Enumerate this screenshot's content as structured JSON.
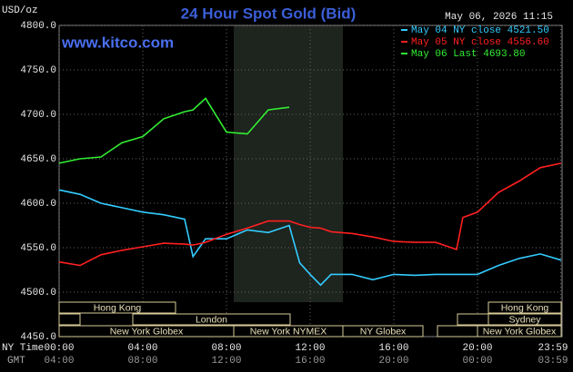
{
  "chart_data": {
    "type": "line",
    "title": "24 Hour Spot Gold (Bid)",
    "y_label": "USD/oz",
    "timestamp": "May 06, 2026 11:15",
    "watermark": "www.kitco.com",
    "x_row_label": "NY Time",
    "x2_row_label": "GMT",
    "x": [
      0,
      1,
      2,
      3,
      4,
      5,
      6,
      6.4,
      7,
      8,
      9,
      10,
      11,
      11.5,
      12,
      12.5,
      13,
      14,
      15,
      16,
      17,
      18,
      19,
      19.3,
      20,
      21,
      22,
      23,
      24
    ],
    "series": [
      {
        "name": "May 04 NY close 4521.50",
        "color": "#33ccff",
        "values": [
          4615,
          4610,
          4600,
          4595,
          4590,
          4587,
          4582,
          4540,
          4560,
          4560,
          4570,
          4567,
          4575,
          4533,
          4520,
          4508,
          4520,
          4520,
          4514,
          4520,
          4519,
          4520,
          4520,
          4520,
          4520,
          4530,
          4538,
          4543,
          4536
        ]
      },
      {
        "name": "May 05 NY close 4556.60",
        "color": "#ff2020",
        "values": [
          4534,
          4530,
          4542,
          4547,
          4551,
          4555,
          4554,
          4553,
          4556,
          4565,
          4572,
          4580,
          4580,
          4576,
          4573,
          4572,
          4568,
          4566,
          4562,
          4557,
          4556,
          4556,
          4548,
          4584,
          4590,
          4612,
          4625,
          4640,
          4645
        ]
      },
      {
        "name": "May 06 Last 4693.80",
        "color": "#33ee33",
        "values": [
          4645,
          4650,
          4652,
          4668,
          4675,
          4695,
          4703,
          4705,
          4718,
          4680,
          4678,
          4705,
          4708,
          null,
          null,
          null,
          null,
          null,
          null,
          null,
          null,
          null,
          null,
          null,
          null,
          null,
          null,
          null,
          null
        ]
      }
    ],
    "xlim": [
      0,
      24
    ],
    "xticks": [
      {
        "value": 0,
        "label": "00:00"
      },
      {
        "value": 4,
        "label": "04:00"
      },
      {
        "value": 8,
        "label": "08:00"
      },
      {
        "value": 12,
        "label": "12:00"
      },
      {
        "value": 16,
        "label": "16:00"
      },
      {
        "value": 20,
        "label": "20:00"
      },
      {
        "value": 23.98,
        "label": "23:59"
      }
    ],
    "x2_tick_labels": [
      "04:00",
      "08:00",
      "12:00",
      "16:00",
      "20:00",
      "00:00",
      "03:59"
    ],
    "ylim": [
      4450,
      4800
    ],
    "yticks": [
      {
        "value": 4450,
        "label": "4450.0"
      },
      {
        "value": 4500,
        "label": "4500.0"
      },
      {
        "value": 4550,
        "label": "4550.0"
      },
      {
        "value": 4600,
        "label": "4600.0"
      },
      {
        "value": 4650,
        "label": "4650.0"
      },
      {
        "value": 4700,
        "label": "4700.0"
      },
      {
        "value": 4750,
        "label": "4750.0"
      },
      {
        "value": 4800,
        "label": "4800.0"
      }
    ],
    "grid": true,
    "sessions": [
      "Hong Kong",
      "London",
      "New York Globex",
      "New York NYMEX",
      "NY Globex",
      "Hong Kong",
      "Sydney",
      "New York Globex"
    ]
  }
}
